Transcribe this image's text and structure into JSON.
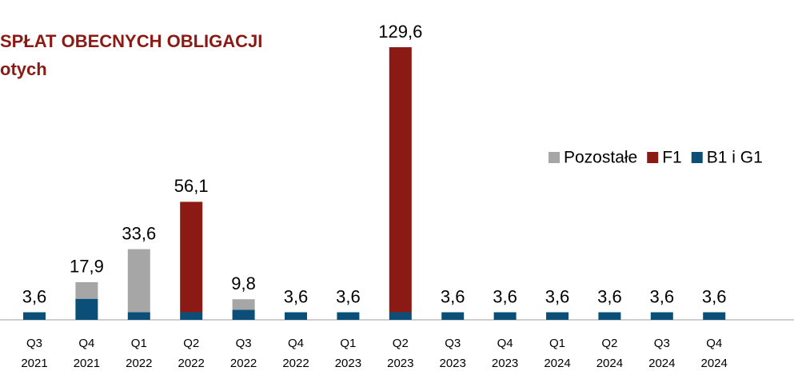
{
  "chart_data": {
    "type": "stacked_bar",
    "title": [
      "SPŁAT OBECNYCH OBLIGACJI",
      "otych"
    ],
    "categories": [
      [
        "Q3",
        "2021"
      ],
      [
        "Q4",
        "2021"
      ],
      [
        "Q1",
        "2022"
      ],
      [
        "Q2",
        "2022"
      ],
      [
        "Q3",
        "2022"
      ],
      [
        "Q4",
        "2022"
      ],
      [
        "Q1",
        "2023"
      ],
      [
        "Q2",
        "2023"
      ],
      [
        "Q3",
        "2023"
      ],
      [
        "Q4",
        "2023"
      ],
      [
        "Q1",
        "2024"
      ],
      [
        "Q2",
        "2024"
      ],
      [
        "Q3",
        "2024"
      ],
      [
        "Q4",
        "2024"
      ]
    ],
    "series": [
      {
        "name": "Pozostałe",
        "color": "#a6a6a6",
        "values": [
          0,
          7.9,
          30.0,
          0,
          5.0,
          0,
          0,
          0,
          0,
          0,
          0,
          0,
          0,
          0
        ]
      },
      {
        "name": "F1",
        "color": "#8b1a14",
        "values": [
          0,
          0,
          0,
          52.5,
          0,
          0,
          0,
          126.0,
          0,
          0,
          0,
          0,
          0,
          0
        ]
      },
      {
        "name": "B1 i G1",
        "color": "#0b4f78",
        "values": [
          3.6,
          10.0,
          3.6,
          3.6,
          4.8,
          3.6,
          3.6,
          3.6,
          3.6,
          3.6,
          3.6,
          3.6,
          3.6,
          3.6
        ]
      }
    ],
    "totals": [
      3.6,
      17.9,
      33.6,
      56.1,
      9.8,
      3.6,
      3.6,
      129.6,
      3.6,
      3.6,
      3.6,
      3.6,
      3.6,
      3.6
    ],
    "value_labels": [
      "3,6",
      "17,9",
      "33,6",
      "56,1",
      "9,8",
      "3,6",
      "3,6",
      "129,6",
      "3,6",
      "3,6",
      "3,6",
      "3,6",
      "3,6",
      "3,6"
    ],
    "ylim": [
      0,
      130
    ],
    "legend": "top-right"
  }
}
